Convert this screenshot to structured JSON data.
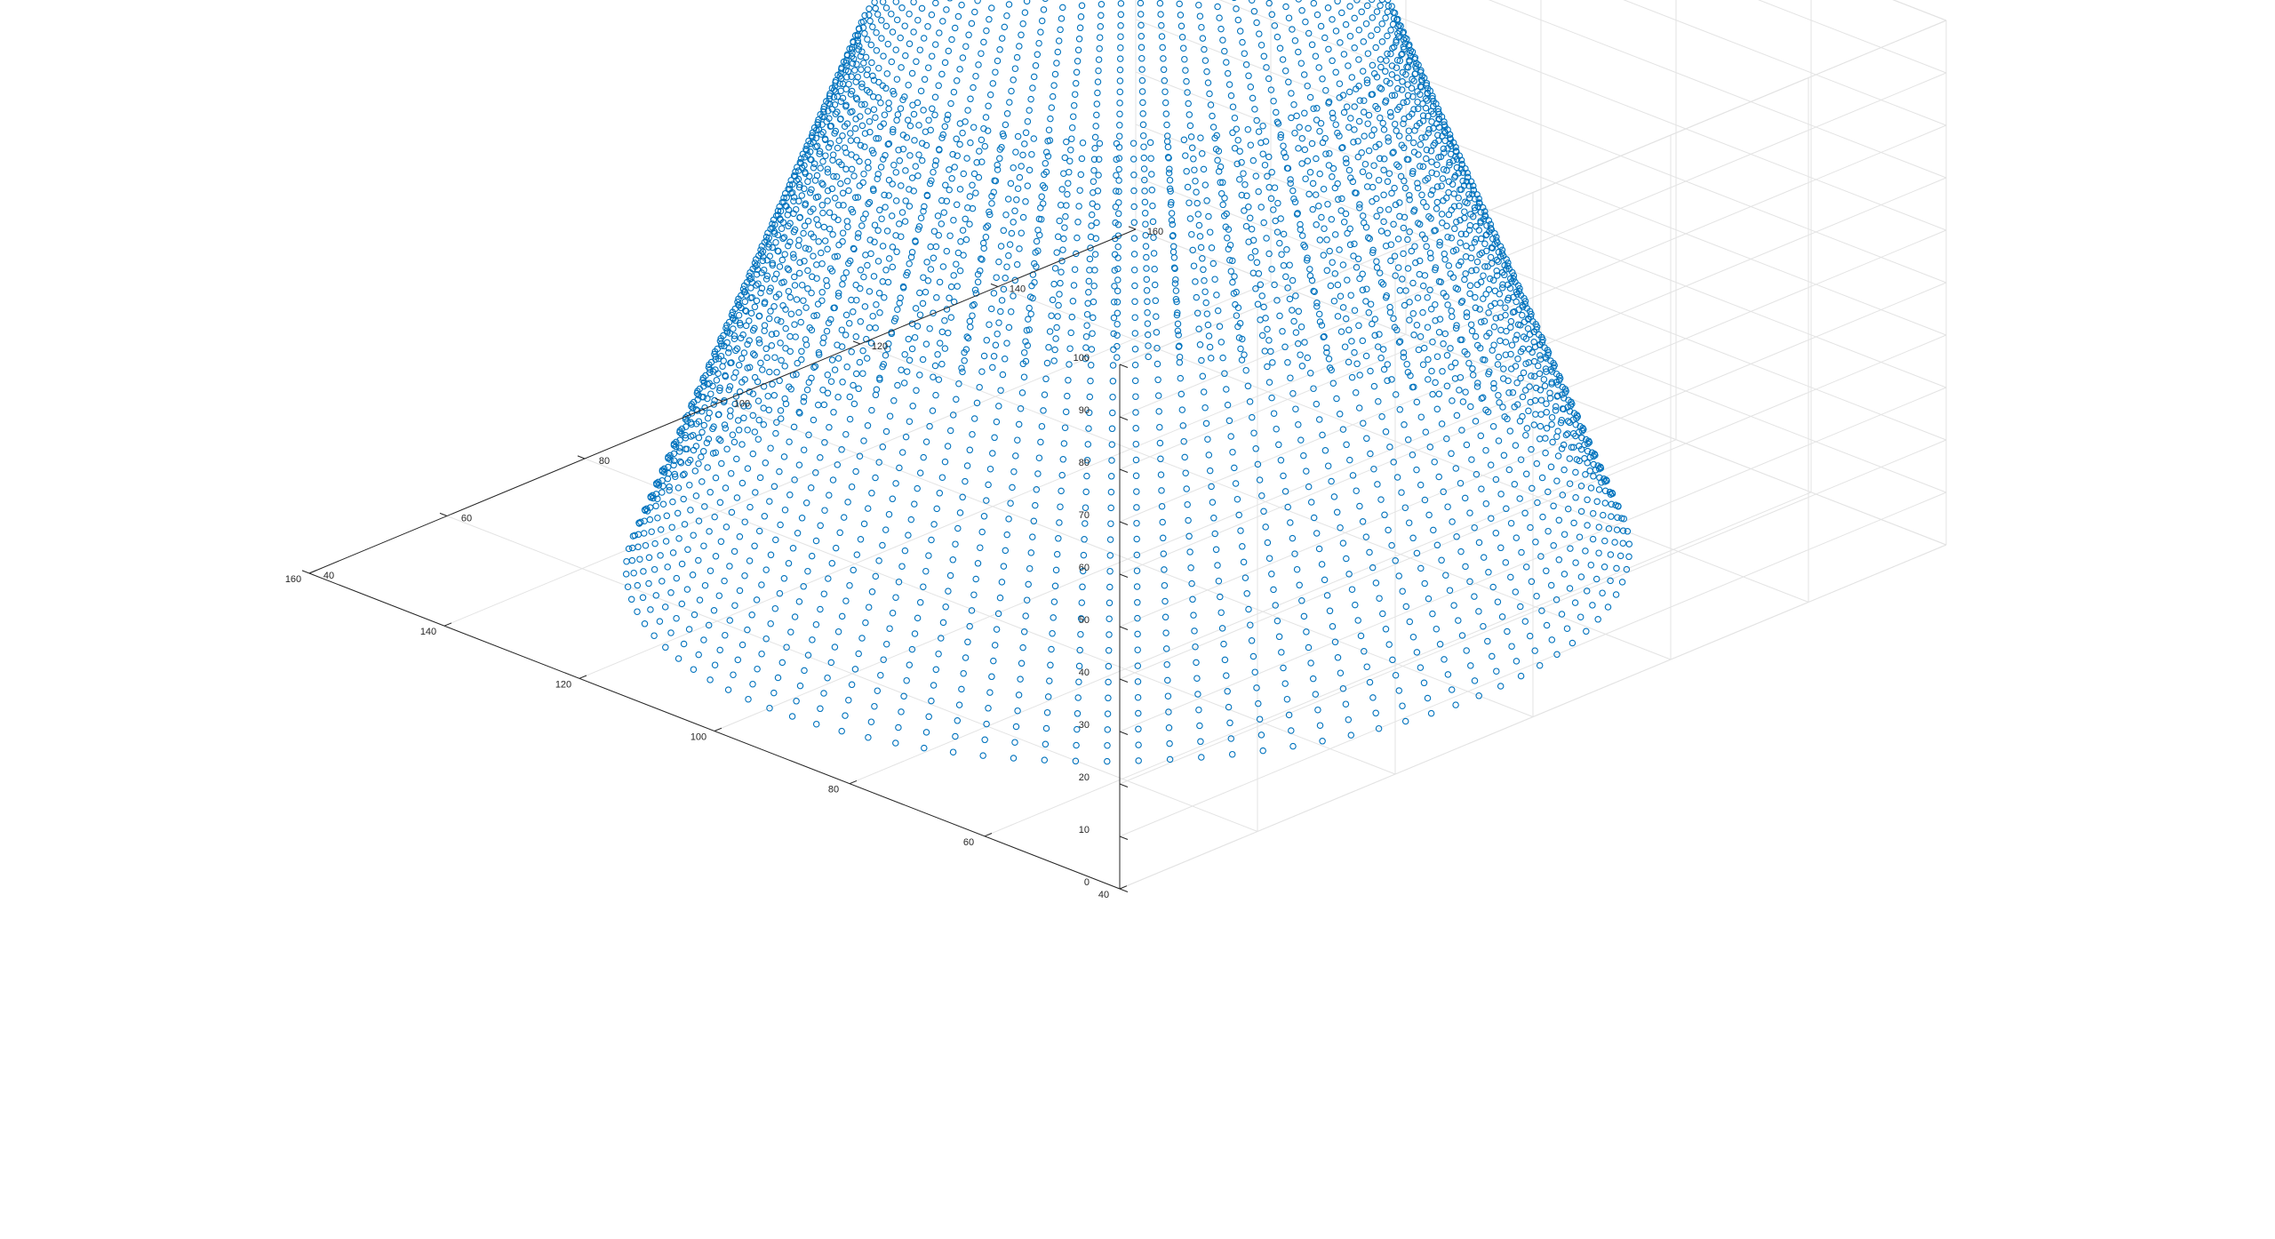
{
  "figure": {
    "background": "#ffffff"
  },
  "chart_data": {
    "type": "scatter",
    "projection": "3d",
    "title": "",
    "xlabel": "",
    "ylabel": "",
    "zlabel": "",
    "grid": true,
    "box": true,
    "marker": "circle",
    "marker_color": "#0072BD",
    "xlim": [
      40,
      160
    ],
    "ylim": [
      40,
      160
    ],
    "zlim": [
      0,
      100
    ],
    "x_ticks": [
      "40",
      "60",
      "80",
      "100",
      "120",
      "140",
      "160"
    ],
    "y_ticks": [
      "40",
      "60",
      "80",
      "100",
      "120",
      "140",
      "160"
    ],
    "z_ticks": [
      "0",
      "10",
      "20",
      "30",
      "40",
      "50",
      "60",
      "70",
      "80",
      "90",
      "100"
    ],
    "x_tick_values": [
      40,
      60,
      80,
      100,
      120,
      140,
      160
    ],
    "y_tick_values": [
      40,
      60,
      80,
      100,
      120,
      140,
      160
    ],
    "z_tick_values": [
      0,
      10,
      20,
      30,
      40,
      50,
      60,
      70,
      80,
      90,
      100
    ],
    "series": [
      {
        "shape": "truncated cone (frustum), sampled on concentric rings",
        "center": [
          100,
          100
        ],
        "base_z": 0,
        "top_z": 100,
        "base_radius": 52,
        "top_radius": 28,
        "ring_count": 40,
        "points_per_ring": 100
      }
    ]
  }
}
